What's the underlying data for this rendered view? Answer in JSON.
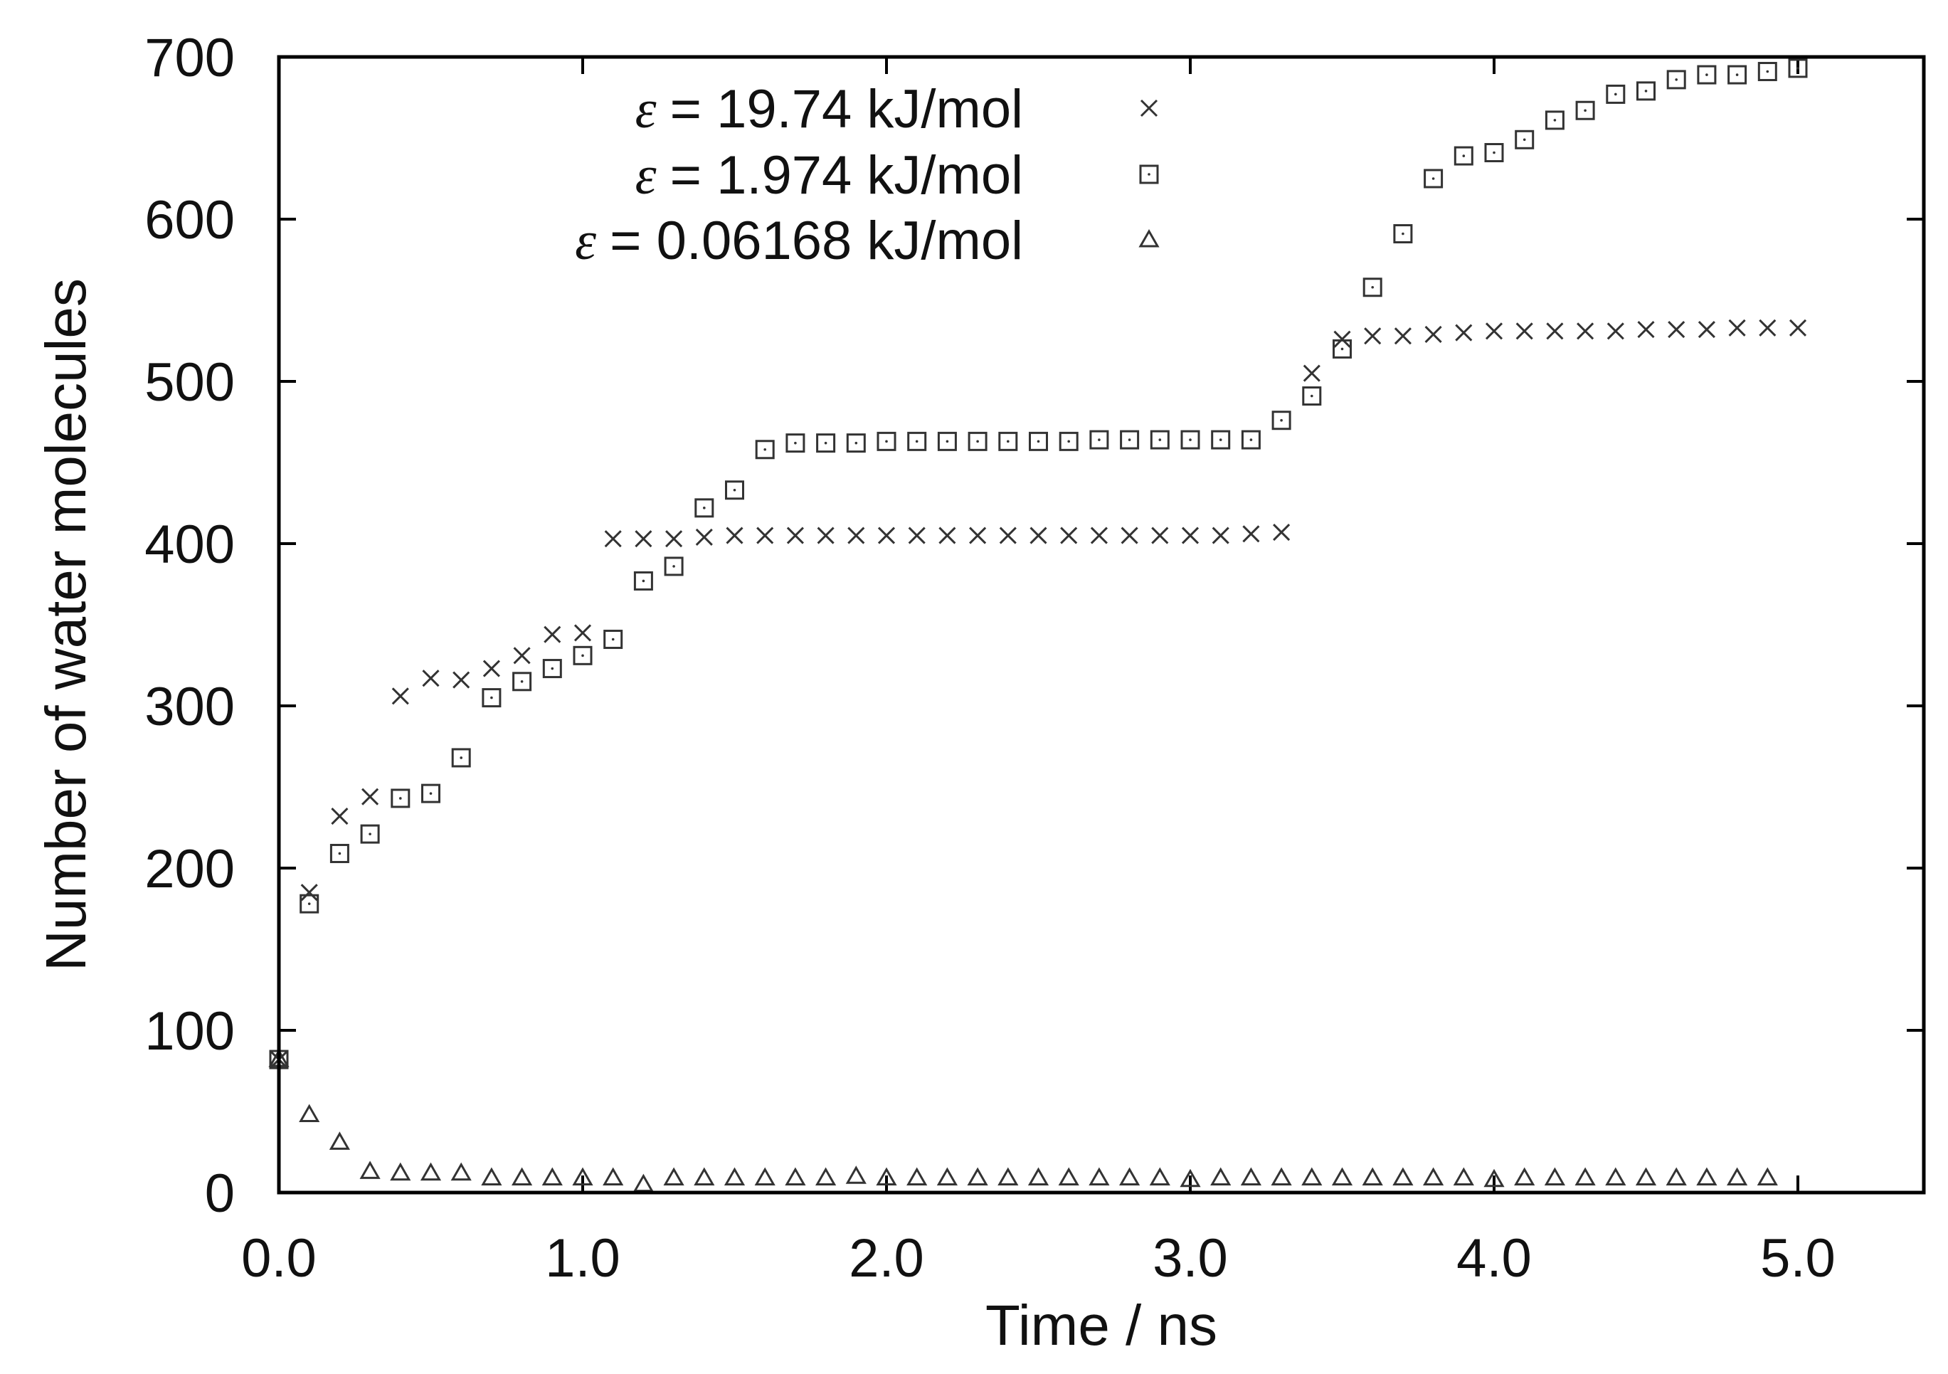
{
  "chart_data": {
    "type": "scatter",
    "title": "",
    "xlabel": "Time / ns",
    "ylabel": "Number of water molecules",
    "xlim": [
      0,
      5.4
    ],
    "ylim": [
      0,
      700
    ],
    "x_ticks": [
      0,
      1,
      2,
      3,
      4,
      5
    ],
    "x_tick_labels": [
      "0.0",
      "1.0",
      "2.0",
      "3.0",
      "4.0",
      "5.0"
    ],
    "y_ticks": [
      0,
      100,
      200,
      300,
      400,
      500,
      600,
      700
    ],
    "y_tick_labels": [
      "0",
      "100",
      "200",
      "300",
      "400",
      "500",
      "600",
      "700"
    ],
    "legend_position": "top-left",
    "series": [
      {
        "name": "ε = 19.74 kJ/mol",
        "symbol": "ε",
        "label": "= 19.74 kJ/mol",
        "marker": "x",
        "x": [
          0.0,
          0.1,
          0.2,
          0.3,
          0.4,
          0.5,
          0.6,
          0.7,
          0.8,
          0.9,
          1.0,
          1.1,
          1.2,
          1.3,
          1.4,
          1.5,
          1.6,
          1.7,
          1.8,
          1.9,
          2.0,
          2.1,
          2.2,
          2.3,
          2.4,
          2.5,
          2.6,
          2.7,
          2.8,
          2.9,
          3.0,
          3.1,
          3.2,
          3.3,
          3.4,
          3.5,
          3.6,
          3.7,
          3.8,
          3.9,
          4.0,
          4.1,
          4.2,
          4.3,
          4.4,
          4.5,
          4.6,
          4.7,
          4.8,
          4.9,
          5.0
        ],
        "values": [
          82,
          185,
          232,
          244,
          306,
          317,
          316,
          323,
          331,
          344,
          345,
          403,
          403,
          403,
          404,
          405,
          405,
          405,
          405,
          405,
          405,
          405,
          405,
          405,
          405,
          405,
          405,
          405,
          405,
          405,
          405,
          405,
          406,
          407,
          505,
          526,
          528,
          528,
          529,
          530,
          531,
          531,
          531,
          531,
          531,
          532,
          532,
          532,
          533,
          533,
          533
        ]
      },
      {
        "name": "ε = 1.974 kJ/mol",
        "symbol": "ε",
        "label": "= 1.974 kJ/mol",
        "marker": "square",
        "x": [
          0.0,
          0.1,
          0.2,
          0.3,
          0.4,
          0.5,
          0.6,
          0.7,
          0.8,
          0.9,
          1.0,
          1.1,
          1.2,
          1.3,
          1.4,
          1.5,
          1.6,
          1.7,
          1.8,
          1.9,
          2.0,
          2.1,
          2.2,
          2.3,
          2.4,
          2.5,
          2.6,
          2.7,
          2.8,
          2.9,
          3.0,
          3.1,
          3.2,
          3.3,
          3.4,
          3.5,
          3.6,
          3.7,
          3.8,
          3.9,
          4.0,
          4.1,
          4.2,
          4.3,
          4.4,
          4.5,
          4.6,
          4.7,
          4.8,
          4.9,
          5.0
        ],
        "values": [
          82,
          178,
          209,
          221,
          243,
          246,
          268,
          305,
          315,
          323,
          331,
          341,
          377,
          386,
          422,
          433,
          458,
          462,
          462,
          462,
          463,
          463,
          463,
          463,
          463,
          463,
          463,
          464,
          464,
          464,
          464,
          464,
          464,
          476,
          491,
          520,
          558,
          591,
          625,
          639,
          641,
          649,
          661,
          667,
          677,
          679,
          686,
          689,
          689,
          691,
          693
        ]
      },
      {
        "name": "ε = 0.06168 kJ/mol",
        "symbol": "ε",
        "label": "= 0.06168 kJ/mol",
        "marker": "triangle",
        "x": [
          0.0,
          0.1,
          0.2,
          0.3,
          0.4,
          0.5,
          0.6,
          0.7,
          0.8,
          0.9,
          1.0,
          1.1,
          1.2,
          1.3,
          1.4,
          1.5,
          1.6,
          1.7,
          1.8,
          1.9,
          2.0,
          2.1,
          2.2,
          2.3,
          2.4,
          2.5,
          2.6,
          2.7,
          2.8,
          2.9,
          3.0,
          3.1,
          3.2,
          3.3,
          3.4,
          3.5,
          3.6,
          3.7,
          3.8,
          3.9,
          4.0,
          4.1,
          4.2,
          4.3,
          4.4,
          4.5,
          4.6,
          4.7,
          4.8,
          4.9
        ],
        "values": [
          82,
          48,
          31,
          13,
          12,
          12,
          12,
          9,
          9,
          9,
          9,
          9,
          5,
          9,
          9,
          9,
          9,
          9,
          9,
          10,
          9,
          9,
          9,
          9,
          9,
          9,
          9,
          9,
          9,
          9,
          8,
          9,
          9,
          9,
          9,
          9,
          9,
          9,
          9,
          9,
          8,
          9,
          9,
          9,
          9,
          9,
          9,
          9,
          9,
          9
        ]
      }
    ]
  }
}
